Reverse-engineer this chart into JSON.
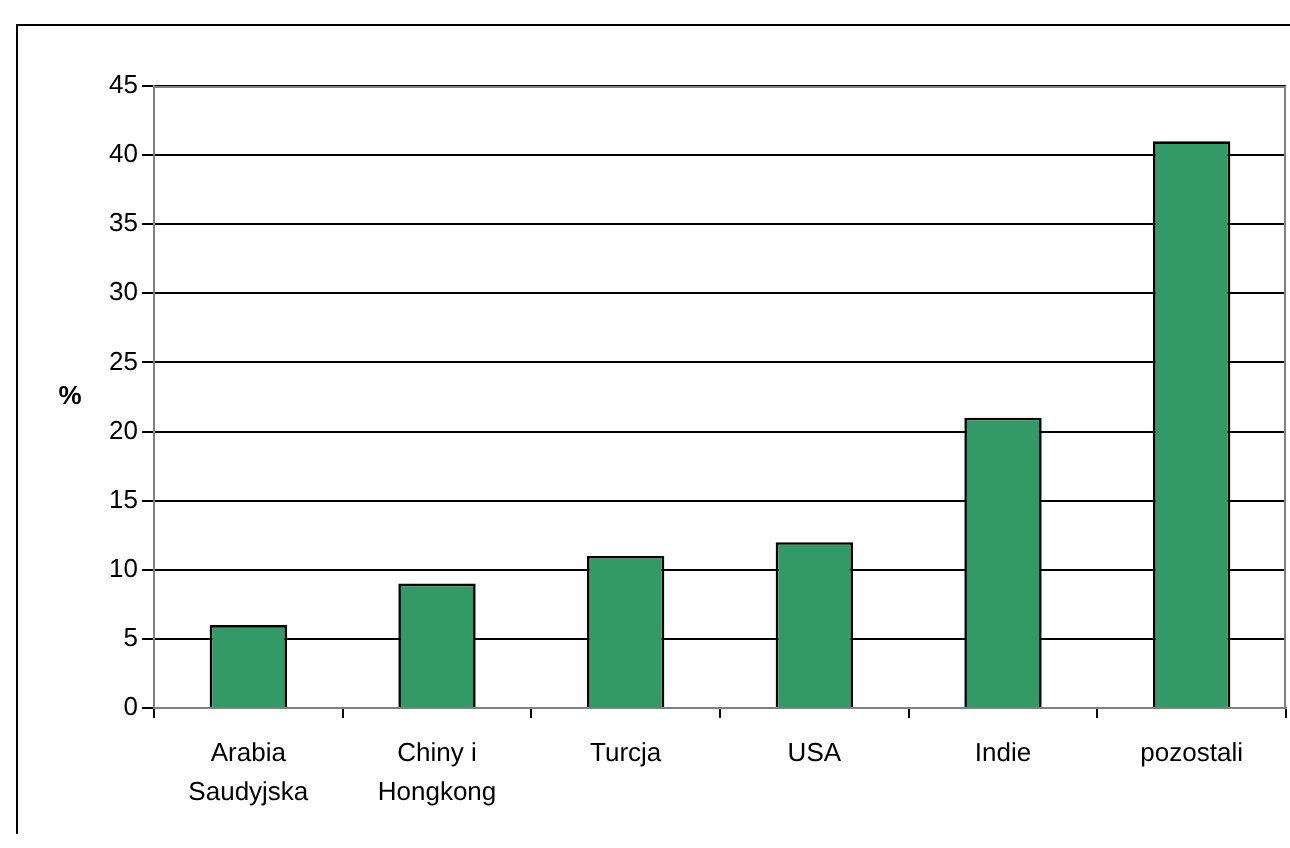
{
  "chart_data": {
    "type": "bar",
    "categories": [
      "Arabia Saudyjska",
      "Chiny i Hongkong",
      "Turcja",
      "USA",
      "Indie",
      "pozostali"
    ],
    "values": [
      6,
      9,
      11,
      12,
      21,
      41
    ],
    "color": "#339966",
    "ylabel": "%",
    "ylim": [
      0,
      45
    ],
    "yticks": [
      0,
      5,
      10,
      15,
      20,
      25,
      30,
      35,
      40,
      45
    ],
    "grid": "y"
  }
}
